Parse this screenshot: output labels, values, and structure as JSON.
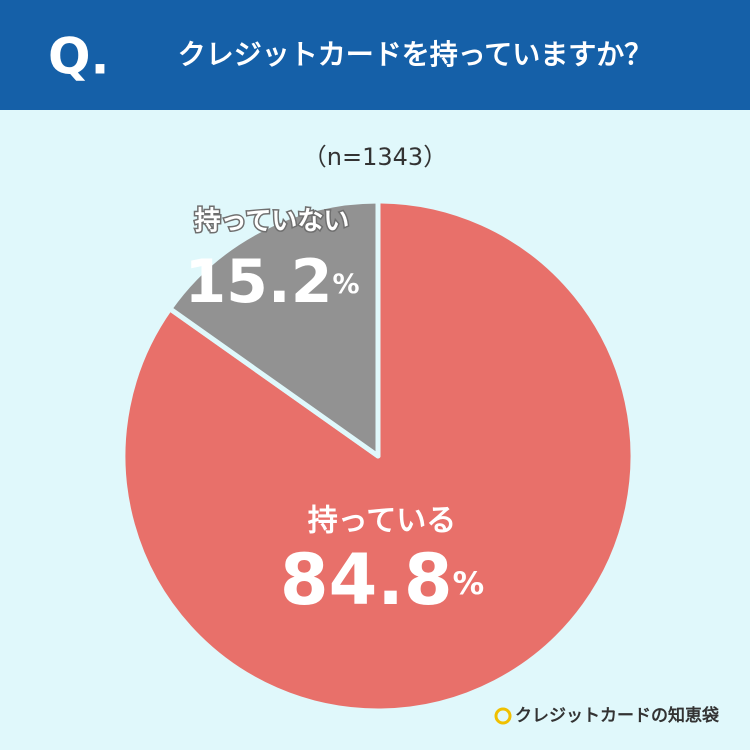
{
  "header": {
    "mark": "Q.",
    "title": "クレジットカードを持っていますか？"
  },
  "chart_data": {
    "type": "pie",
    "subtitle": "（n=1343）",
    "categories": [
      "持っている",
      "持っていない"
    ],
    "values": [
      84.8,
      15.2
    ],
    "value_labels": [
      "84.8%",
      "15.2%"
    ],
    "colors": [
      "#e8706a",
      "#929292"
    ]
  },
  "brand": "クレジットカードの知恵袋"
}
